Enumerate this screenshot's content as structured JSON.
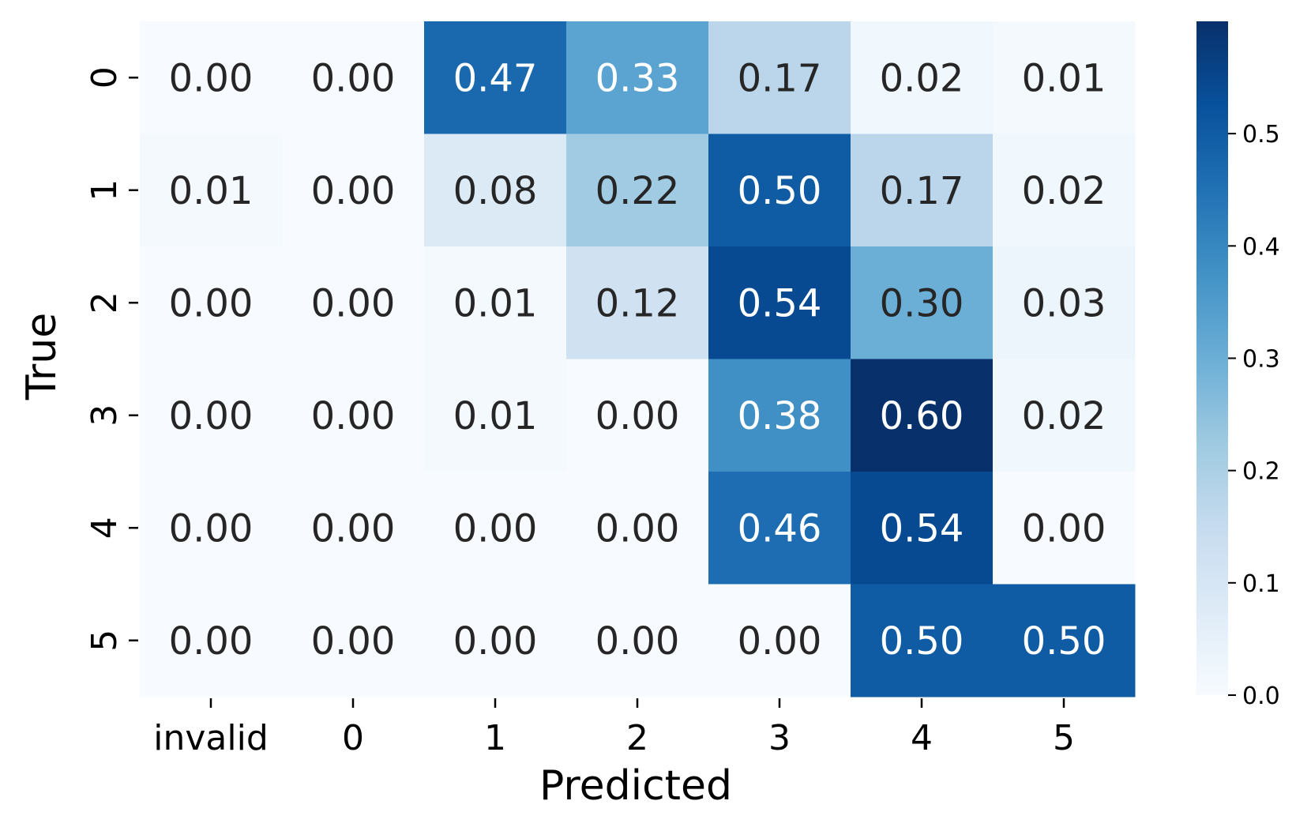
{
  "chart_data": {
    "type": "heatmap",
    "title": "",
    "xlabel": "Predicted",
    "ylabel": "True",
    "x_categories": [
      "invalid",
      "0",
      "1",
      "2",
      "3",
      "4",
      "5"
    ],
    "y_categories": [
      "0",
      "1",
      "2",
      "3",
      "4",
      "5"
    ],
    "values": [
      [
        0.0,
        0.0,
        0.47,
        0.33,
        0.17,
        0.02,
        0.01
      ],
      [
        0.01,
        0.0,
        0.08,
        0.22,
        0.5,
        0.17,
        0.02
      ],
      [
        0.0,
        0.0,
        0.01,
        0.12,
        0.54,
        0.3,
        0.03
      ],
      [
        0.0,
        0.0,
        0.01,
        0.0,
        0.38,
        0.6,
        0.02
      ],
      [
        0.0,
        0.0,
        0.0,
        0.0,
        0.46,
        0.54,
        0.0
      ],
      [
        0.0,
        0.0,
        0.0,
        0.0,
        0.0,
        0.5,
        0.5
      ]
    ],
    "value_format": "0.00",
    "colormap": "Blues",
    "colorbar": {
      "min": 0.0,
      "max": 0.6,
      "ticks": [
        0.0,
        0.1,
        0.2,
        0.3,
        0.4,
        0.5
      ],
      "tick_labels": [
        "0.0",
        "0.1",
        "0.2",
        "0.3",
        "0.4",
        "0.5"
      ]
    },
    "text_colors": {
      "dark": "#262626",
      "light": "#ffffff"
    },
    "grid": false,
    "legend": "colorbar-right"
  }
}
